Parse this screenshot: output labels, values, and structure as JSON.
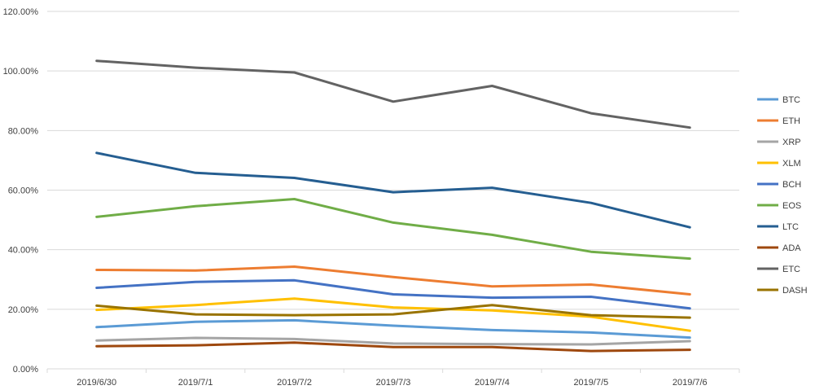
{
  "chart_data": {
    "type": "line",
    "title": "",
    "xlabel": "",
    "ylabel": "",
    "categories": [
      "2019/6/30",
      "2019/7/1",
      "2019/7/2",
      "2019/7/3",
      "2019/7/4",
      "2019/7/5",
      "2019/7/6"
    ],
    "ylim": [
      0,
      120
    ],
    "yticks": [
      "0.00%",
      "20.00%",
      "40.00%",
      "60.00%",
      "80.00%",
      "100.00%",
      "120.00%"
    ],
    "grid": "horizontal",
    "legend_position": "right",
    "series": [
      {
        "name": "BTC",
        "color": "#5b9bd5",
        "values": [
          14.0,
          15.8,
          16.3,
          14.5,
          13.0,
          12.2,
          10.5
        ]
      },
      {
        "name": "ETH",
        "color": "#ed7d31",
        "values": [
          33.2,
          33.0,
          34.3,
          30.8,
          27.7,
          28.3,
          25.0
        ]
      },
      {
        "name": "XRP",
        "color": "#a5a5a5",
        "values": [
          9.5,
          10.4,
          10.0,
          8.5,
          8.3,
          8.2,
          9.3
        ]
      },
      {
        "name": "XLM",
        "color": "#ffc000",
        "values": [
          19.8,
          21.4,
          23.6,
          20.6,
          19.6,
          17.5,
          12.8
        ]
      },
      {
        "name": "BCH",
        "color": "#4472c4",
        "values": [
          27.2,
          29.2,
          29.7,
          25.0,
          23.9,
          24.2,
          20.3
        ]
      },
      {
        "name": "EOS",
        "color": "#70ad47",
        "values": [
          51.0,
          54.6,
          57.0,
          49.1,
          45.0,
          39.3,
          37.0
        ]
      },
      {
        "name": "LTC",
        "color": "#255e91",
        "values": [
          72.5,
          65.8,
          64.1,
          59.3,
          60.8,
          55.7,
          47.5
        ]
      },
      {
        "name": "ADA",
        "color": "#9e480e",
        "values": [
          7.6,
          7.9,
          8.8,
          7.3,
          7.3,
          6.0,
          6.4
        ]
      },
      {
        "name": "ETC",
        "color": "#636363",
        "values": [
          103.4,
          101.1,
          99.5,
          89.7,
          95.0,
          85.8,
          81.0
        ]
      },
      {
        "name": "DASH",
        "color": "#997300",
        "values": [
          21.2,
          18.3,
          18.0,
          18.3,
          21.4,
          18.0,
          17.2
        ]
      }
    ]
  }
}
